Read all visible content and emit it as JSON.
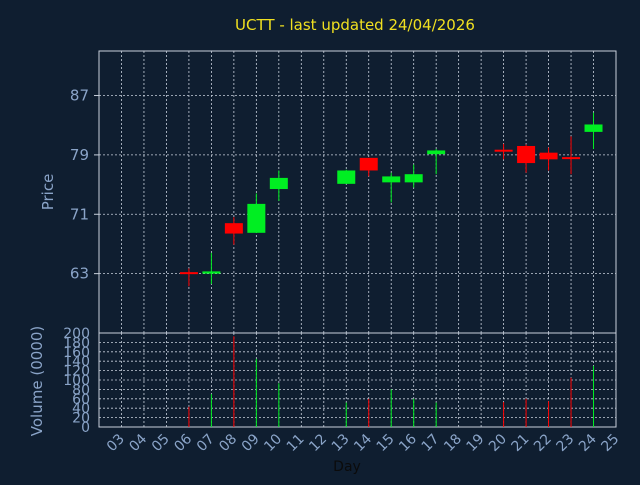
{
  "chart_data": {
    "type": "candlestick",
    "title": "UCTT - last updated 24/04/2026",
    "xlabel": "Day",
    "price_ylabel": "Price",
    "volume_ylabel": "Volume (0000)",
    "price_ylim": [
      55,
      93
    ],
    "price_yticks": [
      63,
      71,
      79,
      87
    ],
    "volume_ylim": [
      0,
      200
    ],
    "volume_yticks": [
      0,
      20,
      40,
      60,
      80,
      100,
      120,
      140,
      160,
      180,
      200
    ],
    "x_ticks": [
      "03",
      "04",
      "05",
      "06",
      "07",
      "08",
      "09",
      "10",
      "11",
      "12",
      "13",
      "14",
      "15",
      "16",
      "17",
      "18",
      "19",
      "20",
      "21",
      "22",
      "23",
      "24",
      "25"
    ],
    "grid": true,
    "colors": {
      "up": "#00ee22",
      "down": "#ff0000",
      "background": "#0f1e30",
      "grid": "#c8d0dc",
      "title": "#f0e020",
      "text": "#8aa4c8"
    },
    "candles": [
      {
        "day": "06",
        "open": 63.2,
        "close": 63.0,
        "high": 63.7,
        "low": 61.3,
        "volume": 43
      },
      {
        "day": "07",
        "open": 63.0,
        "close": 63.3,
        "high": 65.8,
        "low": 61.6,
        "volume": 70
      },
      {
        "day": "08",
        "open": 69.8,
        "close": 68.4,
        "high": 70.6,
        "low": 66.9,
        "volume": 193
      },
      {
        "day": "09",
        "open": 68.5,
        "close": 72.4,
        "high": 73.8,
        "low": 68.5,
        "volume": 145
      },
      {
        "day": "10",
        "open": 74.4,
        "close": 75.9,
        "high": 76.9,
        "low": 72.8,
        "volume": 93
      },
      {
        "day": "13",
        "open": 75.1,
        "close": 76.9,
        "high": 77.0,
        "low": 75.1,
        "volume": 52
      },
      {
        "day": "14",
        "open": 78.6,
        "close": 76.9,
        "high": 78.6,
        "low": 76.1,
        "volume": 60
      },
      {
        "day": "15",
        "open": 75.3,
        "close": 76.1,
        "high": 76.6,
        "low": 72.6,
        "volume": 80
      },
      {
        "day": "16",
        "open": 75.3,
        "close": 76.4,
        "high": 77.7,
        "low": 74.6,
        "volume": 60
      },
      {
        "day": "17",
        "open": 79.1,
        "close": 79.6,
        "high": 79.8,
        "low": 76.4,
        "volume": 52
      },
      {
        "day": "20",
        "open": 79.7,
        "close": 79.5,
        "high": 80.5,
        "low": 78.4,
        "volume": 53
      },
      {
        "day": "21",
        "open": 80.2,
        "close": 77.9,
        "high": 80.4,
        "low": 76.6,
        "volume": 60
      },
      {
        "day": "22",
        "open": 79.3,
        "close": 78.4,
        "high": 80.0,
        "low": 76.9,
        "volume": 55
      },
      {
        "day": "23",
        "open": 78.7,
        "close": 78.6,
        "high": 81.5,
        "low": 76.4,
        "volume": 105
      },
      {
        "day": "24",
        "open": 82.1,
        "close": 83.1,
        "high": 84.7,
        "low": 79.8,
        "volume": 130
      }
    ]
  }
}
